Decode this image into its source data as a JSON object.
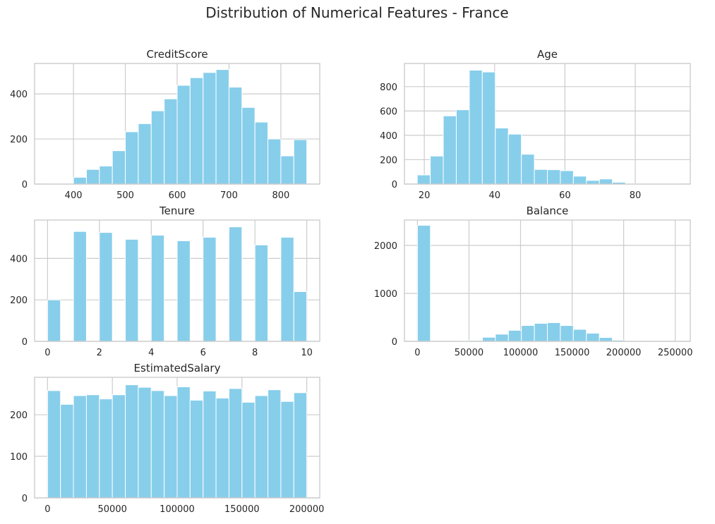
{
  "figure": {
    "title": "Distribution of Numerical Features - France"
  },
  "colors": {
    "bar": "#87ceeb",
    "grid": "#cccccc",
    "frame": "#cccccc",
    "text": "#262626"
  },
  "chart_data": [
    {
      "type": "bar",
      "title": "CreditScore",
      "xlim": [
        325,
        875
      ],
      "ylim": [
        0,
        535
      ],
      "xticks": [
        400,
        500,
        600,
        700,
        800
      ],
      "yticks": [
        0,
        200,
        400
      ],
      "bins": [
        {
          "x0": 350,
          "x1": 375,
          "count": 3
        },
        {
          "x0": 375,
          "x1": 400,
          "count": 3
        },
        {
          "x0": 400,
          "x1": 425,
          "count": 30
        },
        {
          "x0": 425,
          "x1": 450,
          "count": 65
        },
        {
          "x0": 450,
          "x1": 475,
          "count": 80
        },
        {
          "x0": 475,
          "x1": 500,
          "count": 148
        },
        {
          "x0": 500,
          "x1": 525,
          "count": 232
        },
        {
          "x0": 525,
          "x1": 550,
          "count": 268
        },
        {
          "x0": 550,
          "x1": 575,
          "count": 325
        },
        {
          "x0": 575,
          "x1": 600,
          "count": 378
        },
        {
          "x0": 600,
          "x1": 625,
          "count": 438
        },
        {
          "x0": 625,
          "x1": 650,
          "count": 472
        },
        {
          "x0": 650,
          "x1": 675,
          "count": 495
        },
        {
          "x0": 675,
          "x1": 700,
          "count": 508
        },
        {
          "x0": 700,
          "x1": 725,
          "count": 430
        },
        {
          "x0": 725,
          "x1": 750,
          "count": 340
        },
        {
          "x0": 750,
          "x1": 775,
          "count": 275
        },
        {
          "x0": 775,
          "x1": 800,
          "count": 200
        },
        {
          "x0": 800,
          "x1": 825,
          "count": 125
        },
        {
          "x0": 825,
          "x1": 850,
          "count": 197
        }
      ]
    },
    {
      "type": "bar",
      "title": "Age",
      "xlim": [
        14.35,
        95.65
      ],
      "ylim": [
        0,
        990
      ],
      "xticks": [
        20,
        40,
        60,
        80
      ],
      "yticks": [
        0,
        200,
        400,
        600,
        800
      ],
      "bins": [
        {
          "x0": 18,
          "x1": 21.7,
          "count": 75
        },
        {
          "x0": 21.7,
          "x1": 25.4,
          "count": 230
        },
        {
          "x0": 25.4,
          "x1": 29.1,
          "count": 560
        },
        {
          "x0": 29.1,
          "x1": 32.8,
          "count": 610
        },
        {
          "x0": 32.8,
          "x1": 36.5,
          "count": 935
        },
        {
          "x0": 36.5,
          "x1": 40.2,
          "count": 920
        },
        {
          "x0": 40.2,
          "x1": 43.9,
          "count": 460
        },
        {
          "x0": 43.9,
          "x1": 47.6,
          "count": 410
        },
        {
          "x0": 47.6,
          "x1": 51.3,
          "count": 245
        },
        {
          "x0": 51.3,
          "x1": 55.0,
          "count": 120
        },
        {
          "x0": 55.0,
          "x1": 58.7,
          "count": 118
        },
        {
          "x0": 58.7,
          "x1": 62.4,
          "count": 110
        },
        {
          "x0": 62.4,
          "x1": 66.1,
          "count": 65
        },
        {
          "x0": 66.1,
          "x1": 69.8,
          "count": 30
        },
        {
          "x0": 69.8,
          "x1": 73.5,
          "count": 42
        },
        {
          "x0": 73.5,
          "x1": 77.2,
          "count": 15
        },
        {
          "x0": 77.2,
          "x1": 80.9,
          "count": 5
        },
        {
          "x0": 80.9,
          "x1": 84.6,
          "count": 2
        },
        {
          "x0": 84.6,
          "x1": 88.3,
          "count": 2
        },
        {
          "x0": 88.3,
          "x1": 92,
          "count": 2
        }
      ]
    },
    {
      "type": "bar",
      "title": "Tenure",
      "xlim": [
        -0.5,
        10.5
      ],
      "ylim": [
        0,
        585
      ],
      "xticks": [
        0,
        2,
        4,
        6,
        8,
        10
      ],
      "yticks": [
        0,
        200,
        400
      ],
      "bins": [
        {
          "x0": 0,
          "x1": 0.5,
          "count": 200
        },
        {
          "x0": 1,
          "x1": 1.5,
          "count": 530
        },
        {
          "x0": 2,
          "x1": 2.5,
          "count": 525
        },
        {
          "x0": 3,
          "x1": 3.5,
          "count": 492
        },
        {
          "x0": 4,
          "x1": 4.5,
          "count": 512
        },
        {
          "x0": 5,
          "x1": 5.5,
          "count": 485
        },
        {
          "x0": 6,
          "x1": 6.5,
          "count": 502
        },
        {
          "x0": 7,
          "x1": 7.5,
          "count": 552
        },
        {
          "x0": 8,
          "x1": 8.5,
          "count": 465
        },
        {
          "x0": 9,
          "x1": 9.5,
          "count": 502
        },
        {
          "x0": 9.5,
          "x1": 10,
          "count": 240
        }
      ]
    },
    {
      "type": "bar",
      "title": "Balance",
      "xlim": [
        -12600,
        264600
      ],
      "ylim": [
        0,
        2530
      ],
      "xticks": [
        0,
        50000,
        100000,
        150000,
        200000,
        250000
      ],
      "yticks": [
        0,
        1000,
        2000
      ],
      "bins": [
        {
          "x0": 0,
          "x1": 12600,
          "count": 2420
        },
        {
          "x0": 12600,
          "x1": 25200,
          "count": 2
        },
        {
          "x0": 25200,
          "x1": 37800,
          "count": 2
        },
        {
          "x0": 37800,
          "x1": 50400,
          "count": 6
        },
        {
          "x0": 50400,
          "x1": 63000,
          "count": 18
        },
        {
          "x0": 63000,
          "x1": 75600,
          "count": 85
        },
        {
          "x0": 75600,
          "x1": 88200,
          "count": 150
        },
        {
          "x0": 88200,
          "x1": 100800,
          "count": 230
        },
        {
          "x0": 100800,
          "x1": 113400,
          "count": 330
        },
        {
          "x0": 113400,
          "x1": 126000,
          "count": 375
        },
        {
          "x0": 126000,
          "x1": 138600,
          "count": 390
        },
        {
          "x0": 138600,
          "x1": 151200,
          "count": 330
        },
        {
          "x0": 151200,
          "x1": 163800,
          "count": 250
        },
        {
          "x0": 163800,
          "x1": 176400,
          "count": 170
        },
        {
          "x0": 176400,
          "x1": 189000,
          "count": 80
        },
        {
          "x0": 189000,
          "x1": 201600,
          "count": 25
        },
        {
          "x0": 201600,
          "x1": 214200,
          "count": 8
        },
        {
          "x0": 214200,
          "x1": 226800,
          "count": 3
        },
        {
          "x0": 226800,
          "x1": 239400,
          "count": 2
        },
        {
          "x0": 239400,
          "x1": 252000,
          "count": 1
        }
      ]
    },
    {
      "type": "bar",
      "title": "EstimatedSalary",
      "xlim": [
        -10000,
        210000
      ],
      "ylim": [
        0,
        290
      ],
      "xticks": [
        0,
        50000,
        100000,
        150000,
        200000
      ],
      "yticks": [
        0,
        100,
        200
      ],
      "bins": [
        {
          "x0": 0,
          "x1": 10000,
          "count": 258
        },
        {
          "x0": 10000,
          "x1": 20000,
          "count": 225
        },
        {
          "x0": 20000,
          "x1": 30000,
          "count": 246
        },
        {
          "x0": 30000,
          "x1": 40000,
          "count": 248
        },
        {
          "x0": 40000,
          "x1": 50000,
          "count": 238
        },
        {
          "x0": 50000,
          "x1": 60000,
          "count": 248
        },
        {
          "x0": 60000,
          "x1": 70000,
          "count": 272
        },
        {
          "x0": 70000,
          "x1": 80000,
          "count": 266
        },
        {
          "x0": 80000,
          "x1": 90000,
          "count": 258
        },
        {
          "x0": 90000,
          "x1": 100000,
          "count": 246
        },
        {
          "x0": 100000,
          "x1": 110000,
          "count": 267
        },
        {
          "x0": 110000,
          "x1": 120000,
          "count": 235
        },
        {
          "x0": 120000,
          "x1": 130000,
          "count": 257
        },
        {
          "x0": 130000,
          "x1": 140000,
          "count": 240
        },
        {
          "x0": 140000,
          "x1": 150000,
          "count": 263
        },
        {
          "x0": 150000,
          "x1": 160000,
          "count": 230
        },
        {
          "x0": 160000,
          "x1": 170000,
          "count": 246
        },
        {
          "x0": 170000,
          "x1": 180000,
          "count": 260
        },
        {
          "x0": 180000,
          "x1": 190000,
          "count": 232
        },
        {
          "x0": 190000,
          "x1": 200000,
          "count": 253
        }
      ]
    }
  ]
}
